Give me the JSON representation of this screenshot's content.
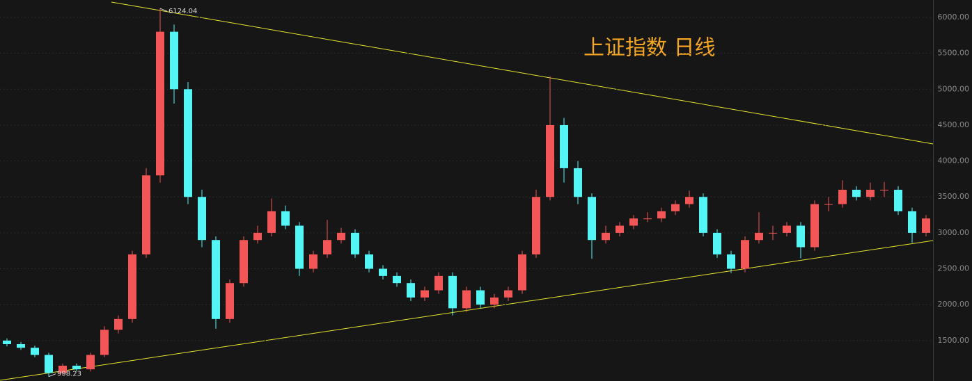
{
  "chart_data": {
    "type": "candlestick",
    "title": "上证指数 日线",
    "open": [
      1500,
      1450,
      1400,
      1300,
      1050,
      1150,
      1100,
      1300,
      1650,
      1800,
      2700,
      3800,
      5800,
      5000,
      3500,
      2900,
      1800,
      2300,
      2900,
      3000,
      3300,
      3100,
      2500,
      2700,
      2900,
      3000,
      2700,
      2500,
      2400,
      2300,
      2100,
      2200,
      2400,
      1950,
      2200,
      2000,
      2100,
      2200,
      2700,
      3500,
      4500,
      3900,
      3500,
      2900,
      3000,
      3100,
      3200,
      3200,
      3300,
      3400,
      3500,
      3000,
      2700,
      2500,
      2900,
      3000,
      3000,
      3100,
      2800,
      3400,
      3400,
      3600,
      3500,
      3600,
      3600,
      3300,
      3000
    ],
    "high": [
      1530,
      1480,
      1430,
      1330,
      1180,
      1180,
      1330,
      1700,
      1850,
      2750,
      3900,
      6124.04,
      5900,
      5100,
      3600,
      2950,
      2350,
      2950,
      3100,
      3478,
      3380,
      3150,
      2750,
      3180,
      3070,
      3050,
      2750,
      2550,
      2450,
      2350,
      2250,
      2450,
      2450,
      2250,
      2250,
      2150,
      2250,
      2750,
      3600,
      5178,
      4600,
      4000,
      3550,
      3100,
      3150,
      3250,
      3288,
      3350,
      3450,
      3587,
      3550,
      3050,
      2750,
      2950,
      3288,
      3100,
      3150,
      3150,
      3450,
      3500,
      3731,
      3650,
      3700,
      3708,
      3650,
      3350,
      3250
    ],
    "low": [
      1420,
      1370,
      1270,
      998.23,
      1020,
      1070,
      1070,
      1270,
      1600,
      1750,
      2650,
      3700,
      4800,
      3400,
      2800,
      1664,
      1750,
      2250,
      2850,
      2950,
      3050,
      2400,
      2450,
      2650,
      2850,
      2650,
      2450,
      2350,
      2250,
      2050,
      2050,
      2150,
      1849,
      1900,
      1950,
      1950,
      2050,
      2150,
      2650,
      3450,
      3700,
      3400,
      2638,
      2850,
      2950,
      3050,
      3150,
      3150,
      3250,
      3350,
      2950,
      2650,
      2440,
      2450,
      2850,
      2900,
      2950,
      2646,
      2750,
      3300,
      3350,
      3450,
      3450,
      3500,
      3250,
      2863,
      2950
    ],
    "close": [
      1450,
      1400,
      1300,
      1050,
      1150,
      1100,
      1300,
      1650,
      1800,
      2700,
      3800,
      5800,
      5000,
      3500,
      2900,
      1800,
      2300,
      2900,
      3000,
      3300,
      3100,
      2500,
      2700,
      2900,
      3000,
      2700,
      2500,
      2400,
      2300,
      2100,
      2200,
      2400,
      1950,
      2200,
      2000,
      2100,
      2200,
      2700,
      3500,
      4500,
      3900,
      3500,
      2900,
      3000,
      3100,
      3200,
      3200,
      3300,
      3400,
      3500,
      3000,
      2700,
      2500,
      2900,
      3000,
      3000,
      3100,
      2800,
      3400,
      3400,
      3600,
      3500,
      3600,
      3600,
      3300,
      3000,
      3200
    ],
    "up_color": "#f25656",
    "down_color": "#54f5f5",
    "annotations": [
      {
        "text": "6124.04",
        "index": 11,
        "value": 6124.04
      },
      {
        "text": "998.23",
        "index": 3,
        "value": 998.23
      }
    ],
    "ylim": [
      937,
      6242
    ],
    "yticks": [
      {
        "value": 1500,
        "label": "1500.00"
      },
      {
        "value": 2000,
        "label": "2000.00"
      },
      {
        "value": 2500,
        "label": "2500.00"
      },
      {
        "value": 3000,
        "label": "3000.00"
      },
      {
        "value": 3500,
        "label": "3500.00"
      },
      {
        "value": 4000,
        "label": "4000.00"
      },
      {
        "value": 4500,
        "label": "4500.00"
      },
      {
        "value": 5000,
        "label": "5000.00"
      },
      {
        "value": 5500,
        "label": "5500.00"
      },
      {
        "value": 6000,
        "label": "6000.00"
      }
    ],
    "grid": true
  }
}
